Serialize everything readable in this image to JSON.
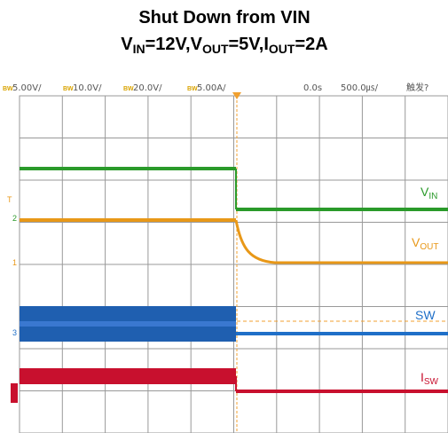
{
  "title": "Shut Down from VIN",
  "subtitle": [
    {
      "text": "V"
    },
    {
      "text": "IN",
      "sub": true
    },
    {
      "text": "=12V,V"
    },
    {
      "text": "OUT",
      "sub": true
    },
    {
      "text": "=5V,I"
    },
    {
      "text": "OUT",
      "sub": true
    },
    {
      "text": "=2A"
    }
  ],
  "header": {
    "channels": [
      {
        "badge": "BW",
        "scale": "5.00V/"
      },
      {
        "badge": "BW",
        "scale": "10.0V/"
      },
      {
        "badge": "BW",
        "scale": "20.0V/"
      },
      {
        "badge": "BW",
        "scale": "5.00A/"
      }
    ],
    "delay": "0.0s",
    "timebase": "500.0㎲/",
    "trigger": "触发?"
  },
  "markers": [
    "T",
    "2",
    "1",
    "3"
  ],
  "trace_labels": [
    {
      "main": "V",
      "sub": "IN",
      "color": "#2a9a2a"
    },
    {
      "main": "V",
      "sub": "OUT",
      "color": "#e89818"
    },
    {
      "main": "SW",
      "color": "#1f6fc8"
    },
    {
      "main": "I",
      "sub": "SW",
      "color": "#c8102e"
    }
  ]
}
